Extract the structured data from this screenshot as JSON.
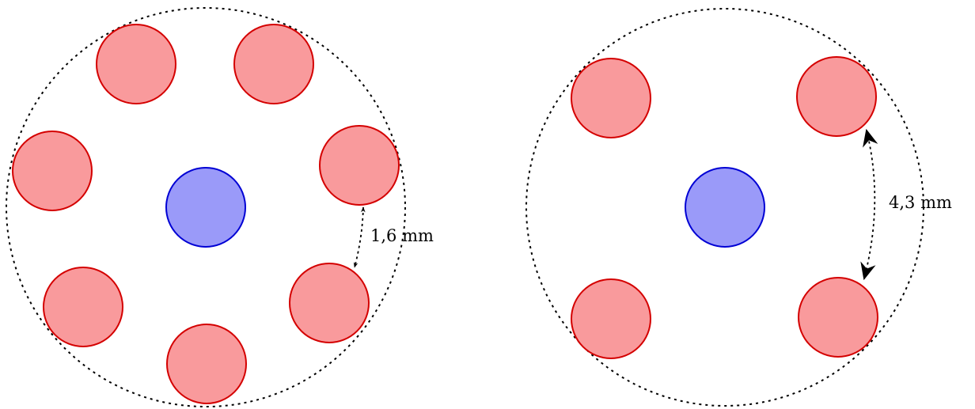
{
  "colors": {
    "satellite_fill": "#F99A9C",
    "satellite_stroke": "#D40000",
    "center_fill": "#9A9AF9",
    "center_stroke": "#0000D4",
    "outline": "#000000"
  },
  "diagrams": [
    {
      "id": "left",
      "satellite_count": 7,
      "spacing_label": "1,6 mm"
    },
    {
      "id": "right",
      "satellite_count": 4,
      "spacing_label": "4,3 mm"
    }
  ]
}
